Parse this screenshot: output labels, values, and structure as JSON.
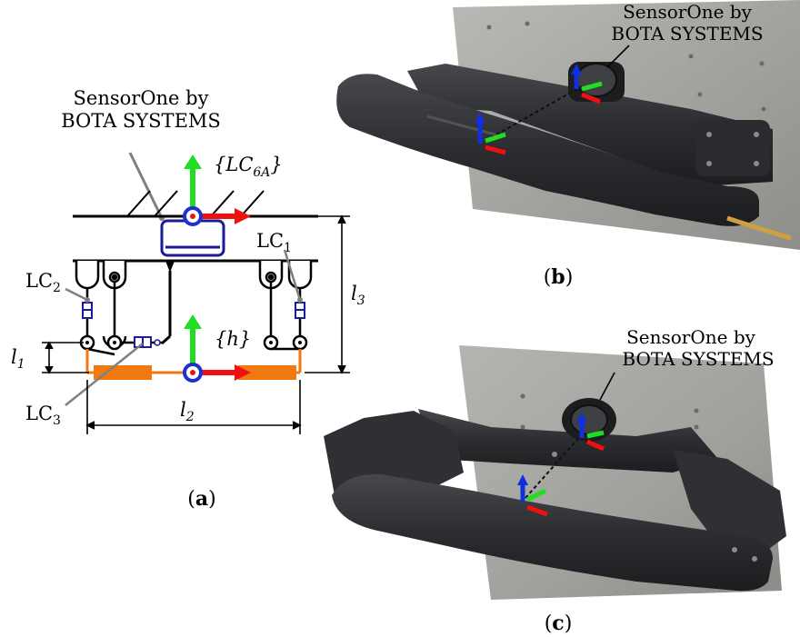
{
  "panel_a": {
    "sensor_label_line1": "SensorOne by",
    "sensor_label_line2": "BOTA SYSTEMS",
    "frame_lc6a_open": "{",
    "frame_lc6a_main": "LC",
    "frame_lc6a_sub": "6A",
    "frame_lc6a_close": "}",
    "frame_h": "{h}",
    "lc1_main": "LC",
    "lc1_sub": "1",
    "lc2_main": "LC",
    "lc2_sub": "2",
    "lc3_main": "LC",
    "lc3_sub": "3",
    "dim_l1_main": "l",
    "dim_l1_sub": "1",
    "dim_l2_main": "l",
    "dim_l2_sub": "2",
    "dim_l3_main": "l",
    "dim_l3_sub": "3",
    "caption_open": "(",
    "caption_letter": "a",
    "caption_close": ")"
  },
  "panel_b": {
    "sensor_label_line1": "SensorOne by",
    "sensor_label_line2": "BOTA SYSTEMS",
    "caption_open": "(",
    "caption_letter": "b",
    "caption_close": ")"
  },
  "panel_c": {
    "sensor_label_line1": "SensorOne by",
    "sensor_label_line2": "BOTA SYSTEMS",
    "caption_open": "(",
    "caption_letter": "c",
    "caption_close": ")"
  },
  "colors": {
    "axis_x": "#f01010",
    "axis_y": "#22dd22",
    "axis_z": "#1030e0",
    "sensor_blue": "#1a1a9a",
    "handle_orange": "#f07a10",
    "frame_origin_blue": "#1f2fd0",
    "leader_grey": "#808080",
    "photo_plate": "#a8a8a4",
    "photo_device": "#2b2d30"
  }
}
